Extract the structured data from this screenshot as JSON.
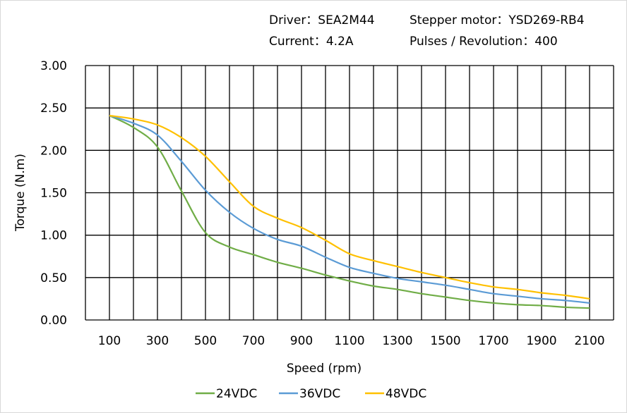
{
  "header": {
    "line1_left": "Driver：SEA2M44",
    "line1_right": "Stepper  motor：YSD269-RB4",
    "line2_left": "Current：4.2A",
    "line2_right": "Pulses / Revolution：400"
  },
  "chart_data": {
    "type": "line",
    "title": "",
    "xlabel": "Speed  (rpm)",
    "ylabel": "Torque (N.m)",
    "xlim": [
      0,
      2200
    ],
    "ylim": [
      0,
      3
    ],
    "grid": true,
    "legend_position": "bottom",
    "x_ticks": [
      "100",
      "300",
      "500",
      "700",
      "900",
      "1100",
      "1300",
      "1500",
      "1700",
      "1900",
      "2100"
    ],
    "y_ticks": [
      "0.00",
      "0.50",
      "1.00",
      "1.50",
      "2.00",
      "2.50",
      "3.00"
    ],
    "x": [
      100,
      200,
      300,
      400,
      500,
      600,
      700,
      800,
      900,
      1000,
      1100,
      1200,
      1300,
      1400,
      1500,
      1600,
      1700,
      1800,
      1900,
      2000,
      2100
    ],
    "series": [
      {
        "name": "24VDC",
        "color": "#70ad47",
        "values": [
          2.41,
          2.27,
          2.04,
          1.52,
          1.03,
          0.86,
          0.77,
          0.68,
          0.61,
          0.53,
          0.46,
          0.4,
          0.36,
          0.31,
          0.27,
          0.23,
          0.2,
          0.18,
          0.17,
          0.15,
          0.14
        ]
      },
      {
        "name": "36VDC",
        "color": "#5b9bd5",
        "values": [
          2.41,
          2.32,
          2.18,
          1.87,
          1.53,
          1.27,
          1.08,
          0.95,
          0.87,
          0.74,
          0.62,
          0.55,
          0.49,
          0.45,
          0.41,
          0.36,
          0.31,
          0.28,
          0.25,
          0.23,
          0.2
        ]
      },
      {
        "name": "48VDC",
        "color": "#ffc000",
        "values": [
          2.41,
          2.37,
          2.3,
          2.15,
          1.93,
          1.63,
          1.34,
          1.2,
          1.09,
          0.94,
          0.78,
          0.7,
          0.63,
          0.56,
          0.5,
          0.44,
          0.39,
          0.36,
          0.32,
          0.29,
          0.25
        ]
      }
    ]
  }
}
